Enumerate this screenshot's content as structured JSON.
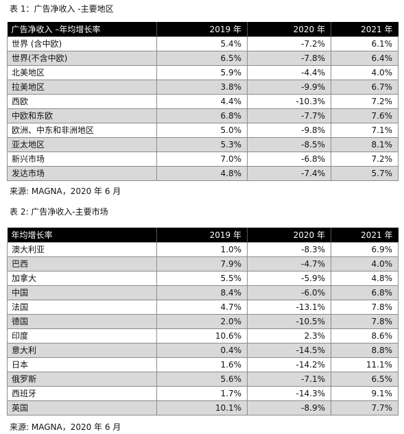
{
  "table1": {
    "caption": "表 1：广告净收入 -主要地区",
    "headers": [
      "广告净收入 –年均增长率",
      "2019 年",
      "2020 年",
      "2021 年"
    ],
    "rows": [
      [
        "世界 (含中欧)",
        "5.4%",
        "-7.2%",
        "6.1%"
      ],
      [
        "世界(不含中欧)",
        "6.5%",
        "-7.8%",
        "6.4%"
      ],
      [
        "北美地区",
        "5.9%",
        "-4.4%",
        "4.0%"
      ],
      [
        "拉美地区",
        "3.8%",
        "-9.9%",
        "6.7%"
      ],
      [
        "西欧",
        "4.4%",
        "-10.3%",
        "7.2%"
      ],
      [
        "中欧和东欧",
        "6.8%",
        "-7.7%",
        "7.6%"
      ],
      [
        "欧洲、中东和非洲地区",
        "5.0%",
        "-9.8%",
        "7.1%"
      ],
      [
        "亚太地区",
        "5.3%",
        "-8.5%",
        "8.1%"
      ],
      [
        "新兴市场",
        "7.0%",
        "-6.8%",
        "7.2%"
      ],
      [
        "发达市场",
        "4.8%",
        "-7.4%",
        "5.7%"
      ]
    ],
    "source": "来源: MAGNA，2020 年 6 月"
  },
  "table2": {
    "caption": "表 2: 广告净收入-主要市场",
    "headers": [
      "年均增长率",
      "2019 年",
      "2020 年",
      "2021 年"
    ],
    "rows": [
      [
        "澳大利亚",
        "1.0%",
        "-8.3%",
        "6.9%"
      ],
      [
        "巴西",
        "7.9%",
        "-4.7%",
        "4.0%"
      ],
      [
        "加拿大",
        "5.5%",
        "-5.9%",
        "4.8%"
      ],
      [
        "中国",
        "8.4%",
        "-6.0%",
        "6.8%"
      ],
      [
        "法国",
        "4.7%",
        "-13.1%",
        "7.8%"
      ],
      [
        "德国",
        "2.0%",
        "-10.5%",
        "7.8%"
      ],
      [
        "印度",
        "10.6%",
        "2.3%",
        "8.6%"
      ],
      [
        "意大利",
        "0.4%",
        "-14.5%",
        "8.8%"
      ],
      [
        "日本",
        "1.6%",
        "-14.2%",
        "11.1%"
      ],
      [
        "俄罗斯",
        "5.6%",
        "-7.1%",
        "6.5%"
      ],
      [
        "西班牙",
        "1.7%",
        "-14.3%",
        "9.1%"
      ],
      [
        "英国",
        "10.1%",
        "-8.9%",
        "7.7%"
      ]
    ],
    "source": "来源: MAGNA，2020 年 6 月"
  }
}
